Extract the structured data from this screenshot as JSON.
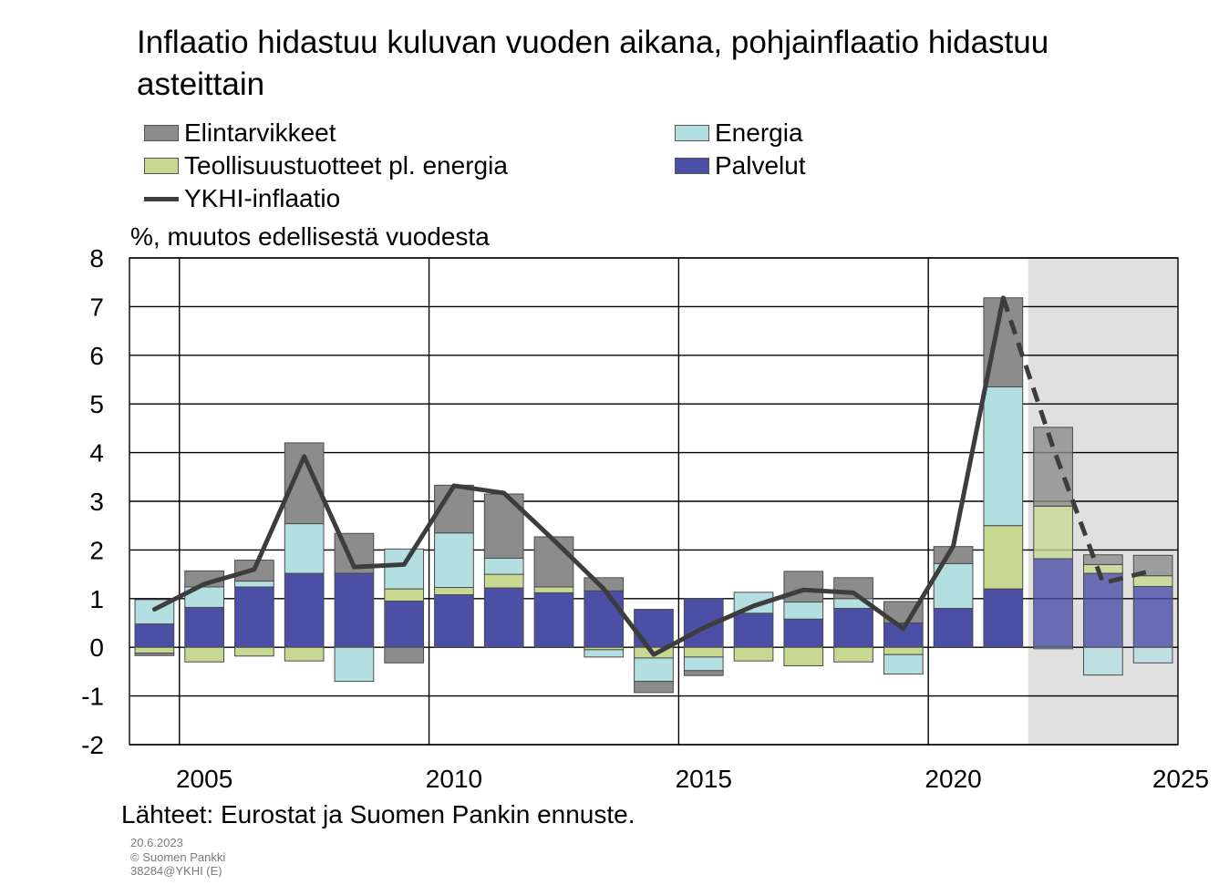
{
  "title": "Inflaatio hidastuu kuluvan vuoden aikana, pohjainflaatio hidastuu asteittain",
  "unit_label": "%, muutos edellisestä  vuodesta",
  "source": "Lähteet:  Eurostat ja Suomen Pankin ennuste.",
  "meta": {
    "date": "20.6.2023",
    "copyright": "© Suomen Pankki",
    "code": "38284@YKHI (E)"
  },
  "legend": [
    {
      "label": "Elintarvikkeet",
      "color": "#8c8c8c",
      "kind": "box"
    },
    {
      "label": "Energia",
      "color": "#b4dfe1",
      "kind": "box"
    },
    {
      "label": "Teollisuustuotteet pl. energia",
      "color": "#c8d891",
      "kind": "box"
    },
    {
      "label": "Palvelut",
      "color": "#4b4fa6",
      "kind": "box"
    },
    {
      "label": "YKHI-inflaatio",
      "color": "#3d3d3d",
      "kind": "line"
    }
  ],
  "chart_data": {
    "type": "bar",
    "stacked": true,
    "x": [
      2004,
      2005,
      2006,
      2007,
      2008,
      2009,
      2010,
      2011,
      2012,
      2013,
      2014,
      2015,
      2016,
      2017,
      2018,
      2019,
      2020,
      2021,
      2022,
      2023,
      2024
    ],
    "x_ticks": [
      2005,
      2010,
      2015,
      2020,
      2025
    ],
    "ylim": [
      -2,
      8
    ],
    "y_ticks": [
      -2,
      -1,
      0,
      1,
      2,
      3,
      4,
      5,
      6,
      7,
      8
    ],
    "ylabel": "%, muutos edellisestä  vuodesta",
    "forecast_from": 2022,
    "grid": true,
    "series": [
      {
        "name": "Palvelut",
        "color": "#4b4fa6",
        "values": [
          0.48,
          0.82,
          1.24,
          1.52,
          1.52,
          0.95,
          1.08,
          1.22,
          1.12,
          1.16,
          0.78,
          1.0,
          0.7,
          0.58,
          0.8,
          0.5,
          0.8,
          1.2,
          1.82,
          1.52,
          1.25
        ]
      },
      {
        "name": "Teollisuustuotteet pl. energia",
        "color": "#c8d891",
        "values": [
          -0.12,
          -0.3,
          -0.18,
          -0.28,
          0.0,
          0.25,
          0.15,
          0.28,
          0.12,
          -0.05,
          -0.22,
          -0.2,
          -0.28,
          -0.38,
          -0.3,
          -0.15,
          0.0,
          1.3,
          1.08,
          0.18,
          0.22
        ]
      },
      {
        "name": "Energia",
        "color": "#b4dfe1",
        "values": [
          0.5,
          0.42,
          0.12,
          1.02,
          -0.7,
          0.82,
          1.12,
          0.33,
          0.0,
          -0.15,
          -0.48,
          -0.28,
          0.43,
          0.35,
          0.2,
          -0.4,
          0.92,
          2.85,
          -0.03,
          -0.57,
          -0.32
        ]
      },
      {
        "name": "Elintarvikkeet",
        "color": "#8c8c8c",
        "values": [
          -0.05,
          0.33,
          0.43,
          1.66,
          0.82,
          -0.32,
          0.98,
          1.32,
          1.03,
          0.27,
          -0.23,
          -0.1,
          0.0,
          0.63,
          0.43,
          0.44,
          0.35,
          1.83,
          1.62,
          0.2,
          0.42
        ]
      }
    ],
    "line": {
      "name": "YKHI-inflaatio",
      "color": "#3d3d3d",
      "values": [
        0.78,
        1.3,
        1.6,
        3.92,
        1.65,
        1.7,
        3.32,
        3.17,
        2.2,
        1.2,
        -0.15,
        0.4,
        0.85,
        1.18,
        1.12,
        0.38,
        2.08,
        7.18,
        4.1,
        1.32,
        1.58
      ]
    }
  }
}
